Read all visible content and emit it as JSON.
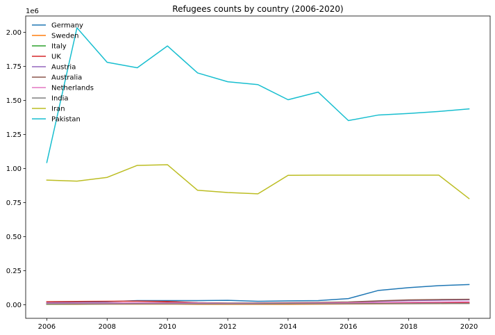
{
  "chart_data": {
    "type": "line",
    "title": "Refugees counts by country (2006-2020)",
    "xlabel": "",
    "ylabel": "",
    "y_offset_label": "1e6",
    "xlim": [
      2005.3,
      2020.7
    ],
    "ylim": [
      -0.1,
      2.12
    ],
    "x_ticks": [
      2006,
      2008,
      2010,
      2012,
      2014,
      2016,
      2018,
      2020
    ],
    "y_ticks": [
      0.0,
      0.25,
      0.5,
      0.75,
      1.0,
      1.25,
      1.5,
      1.75,
      2.0
    ],
    "y_tick_labels": [
      "0.00",
      "0.25",
      "0.50",
      "0.75",
      "1.00",
      "1.25",
      "1.50",
      "1.75",
      "2.00"
    ],
    "grid": false,
    "legend_position": "top-left",
    "x": [
      2006,
      2007,
      2008,
      2009,
      2010,
      2011,
      2012,
      2013,
      2014,
      2015,
      2016,
      2017,
      2018,
      2019,
      2020
    ],
    "series": [
      {
        "name": "Germany",
        "color": "#1f77b4",
        "values": [
          0.015,
          0.02,
          0.022,
          0.03,
          0.03,
          0.03,
          0.032,
          0.025,
          0.028,
          0.03,
          0.045,
          0.105,
          0.125,
          0.14,
          0.148
        ]
      },
      {
        "name": "Sweden",
        "color": "#ff7f0e",
        "values": [
          0.003,
          0.003,
          0.004,
          0.004,
          0.004,
          0.003,
          0.003,
          0.003,
          0.003,
          0.004,
          0.005,
          0.006,
          0.007,
          0.008,
          0.01
        ]
      },
      {
        "name": "Italy",
        "color": "#2ca02c",
        "values": [
          0.004,
          0.005,
          0.006,
          0.007,
          0.008,
          0.007,
          0.007,
          0.007,
          0.008,
          0.01,
          0.012,
          0.014,
          0.016,
          0.018,
          0.012
        ]
      },
      {
        "name": "UK",
        "color": "#d62728",
        "values": [
          0.022,
          0.024,
          0.025,
          0.026,
          0.024,
          0.015,
          0.011,
          0.011,
          0.012,
          0.013,
          0.014,
          0.015,
          0.016,
          0.017,
          0.014
        ]
      },
      {
        "name": "Austria",
        "color": "#9467bd",
        "values": [
          0.008,
          0.008,
          0.009,
          0.01,
          0.01,
          0.009,
          0.009,
          0.01,
          0.012,
          0.014,
          0.018,
          0.025,
          0.03,
          0.033,
          0.036
        ]
      },
      {
        "name": "Australia",
        "color": "#8c564b",
        "values": [
          0.008,
          0.01,
          0.012,
          0.014,
          0.016,
          0.014,
          0.012,
          0.013,
          0.015,
          0.017,
          0.02,
          0.028,
          0.035,
          0.038,
          0.04
        ]
      },
      {
        "name": "Netherlands",
        "color": "#e377c2",
        "values": [
          0.012,
          0.013,
          0.013,
          0.014,
          0.013,
          0.012,
          0.01,
          0.01,
          0.011,
          0.012,
          0.014,
          0.016,
          0.018,
          0.02,
          0.022
        ]
      },
      {
        "name": "India",
        "color": "#7f7f7f",
        "values": [
          0.005,
          0.005,
          0.005,
          0.006,
          0.006,
          0.006,
          0.006,
          0.006,
          0.007,
          0.007,
          0.007,
          0.008,
          0.008,
          0.009,
          0.009
        ]
      },
      {
        "name": "Iran",
        "color": "#bcbd22",
        "values": [
          0.915,
          0.907,
          0.935,
          1.023,
          1.028,
          0.84,
          0.824,
          0.814,
          0.95,
          0.951,
          0.951,
          0.951,
          0.951,
          0.951,
          0.779
        ]
      },
      {
        "name": "Pakistan",
        "color": "#17becf",
        "values": [
          1.044,
          2.033,
          1.78,
          1.74,
          1.9,
          1.702,
          1.637,
          1.616,
          1.505,
          1.561,
          1.352,
          1.393,
          1.404,
          1.419,
          1.438
        ]
      }
    ]
  }
}
